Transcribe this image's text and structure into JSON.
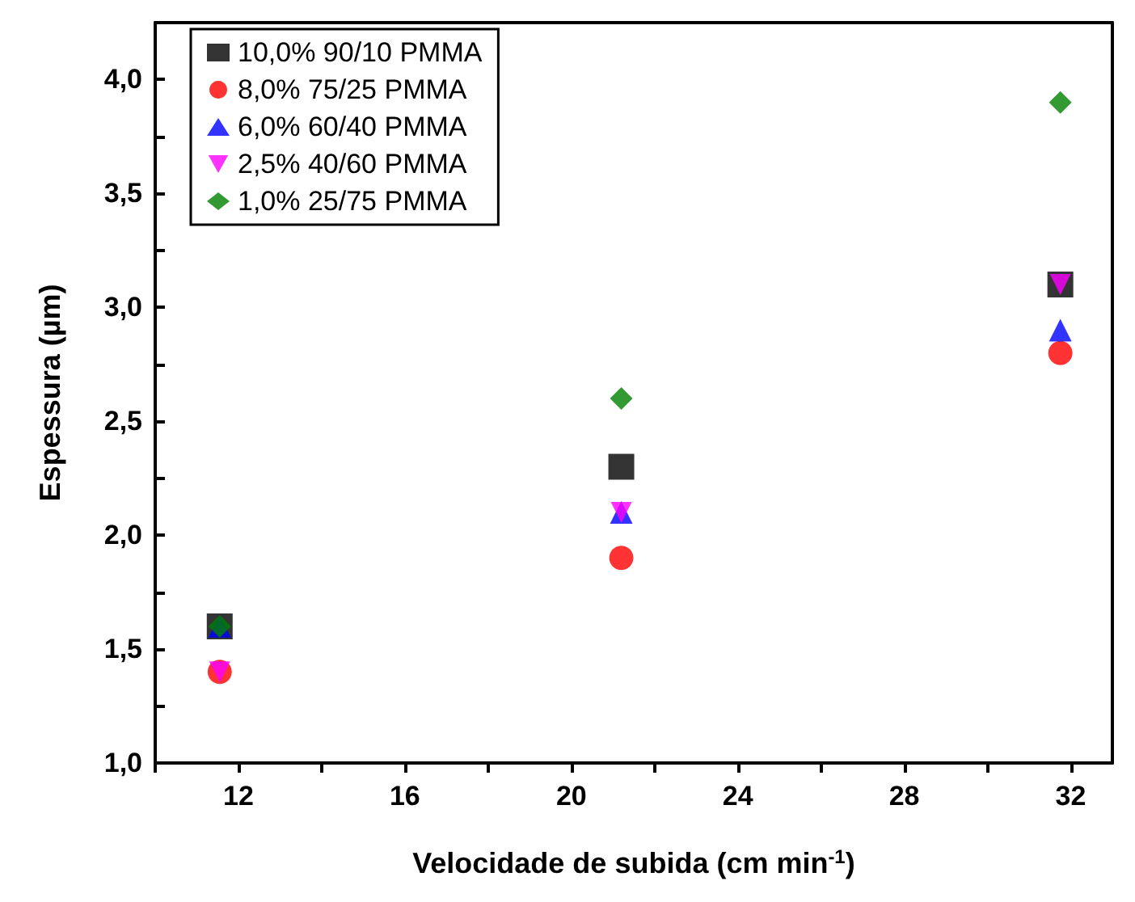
{
  "chart_data": {
    "type": "scatter",
    "xlabel": "Velocidade de subida (cm min$^{-1}$)",
    "ylabel": "Espessura (µm)",
    "x": [
      11.55,
      21.2,
      31.75
    ],
    "series": [
      {
        "name": "10,0% 90/10 PMMA",
        "color": "#000000",
        "marker": "square",
        "values": [
          1.6,
          2.3,
          3.1
        ]
      },
      {
        "name": "8,0% 75/25 PMMA",
        "color": "#ff0000",
        "marker": "circle",
        "values": [
          1.4,
          1.9,
          2.8
        ]
      },
      {
        "name": "6,0% 60/40 PMMA",
        "color": "#0000ff",
        "marker": "triangle",
        "values": [
          1.6,
          2.1,
          2.9
        ]
      },
      {
        "name": "2,5% 40/60 PMMA",
        "color": "#ff00ff",
        "marker": "triangle-down",
        "values": [
          1.4,
          2.1,
          3.1
        ]
      },
      {
        "name": "1,0% 25/75 PMMA",
        "color": "#008000",
        "marker": "diamond",
        "values": [
          1.6,
          2.6,
          3.9
        ]
      }
    ],
    "xlim": [
      10,
      33
    ],
    "xticks": [
      {
        "value": 10,
        "label": null
      },
      12,
      {
        "value": 14,
        "label": null
      },
      16,
      {
        "value": 18,
        "label": null
      },
      20,
      {
        "value": 22,
        "label": null
      },
      24,
      {
        "value": 26,
        "label": null
      },
      28,
      {
        "value": 30,
        "label": null
      },
      32
    ],
    "ylim": [
      1,
      4.25
    ],
    "yticks": [
      {
        "value": 1,
        "label": "1,0"
      },
      {
        "value": 1.25,
        "label": null
      },
      {
        "value": 1.5,
        "label": "1,5"
      },
      {
        "value": 1.75,
        "label": null
      },
      {
        "value": 2,
        "label": "2,0"
      },
      {
        "value": 2.25,
        "label": null
      },
      {
        "value": 2.5,
        "label": "2,5"
      },
      {
        "value": 2.75,
        "label": null
      },
      {
        "value": 3,
        "label": "3,0"
      },
      {
        "value": 3.25,
        "label": null
      },
      {
        "value": 3.5,
        "label": "3,5"
      },
      {
        "value": 3.75,
        "label": null
      },
      {
        "value": 4,
        "label": "4,0"
      }
    ],
    "grid": false,
    "legend": "top left"
  }
}
